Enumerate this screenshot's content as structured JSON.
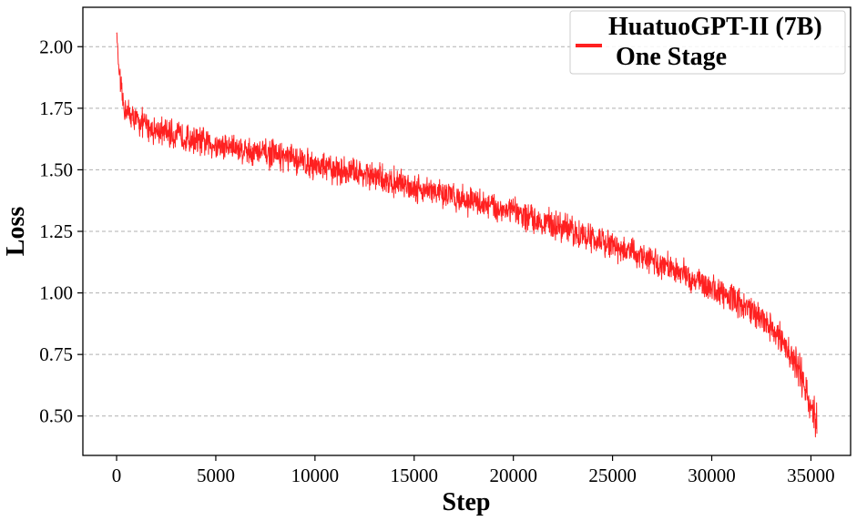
{
  "chart_data": {
    "type": "line",
    "xlabel": "Step",
    "ylabel": "Loss",
    "xlim": [
      -1700,
      37000
    ],
    "ylim": [
      0.34,
      2.16
    ],
    "x_ticks": [
      0,
      5000,
      10000,
      15000,
      20000,
      25000,
      30000,
      35000
    ],
    "y_ticks": [
      0.5,
      0.75,
      1.0,
      1.25,
      1.5,
      1.75,
      2.0
    ],
    "y_tick_labels": [
      "0.50",
      "0.75",
      "1.00",
      "1.25",
      "1.50",
      "1.75",
      "2.00"
    ],
    "grid": "horizontal-dashed",
    "legend_position": "top-right",
    "series": [
      {
        "name": "HuatuoGPT-II (7B)\nOne Stage",
        "legend_lines": [
          "HuatuoGPT-II (7B)",
          "One Stage"
        ],
        "color": "#ff2020",
        "noise_amplitude": 0.07,
        "x": [
          0,
          100,
          200,
          300,
          400,
          600,
          800,
          1000,
          1500,
          2000,
          3000,
          4000,
          5000,
          6000,
          7000,
          8000,
          9000,
          10000,
          11000,
          12000,
          13000,
          14000,
          15000,
          16000,
          17000,
          18000,
          19000,
          20000,
          21000,
          22000,
          23000,
          24000,
          25000,
          26000,
          27000,
          28000,
          29000,
          30000,
          31000,
          32000,
          32500,
          33000,
          33500,
          34000,
          34500,
          35000,
          35300
        ],
        "y": [
          2.07,
          1.92,
          1.83,
          1.78,
          1.75,
          1.73,
          1.71,
          1.7,
          1.68,
          1.66,
          1.64,
          1.62,
          1.6,
          1.59,
          1.57,
          1.56,
          1.54,
          1.52,
          1.5,
          1.49,
          1.47,
          1.45,
          1.43,
          1.41,
          1.39,
          1.37,
          1.35,
          1.33,
          1.3,
          1.28,
          1.25,
          1.22,
          1.19,
          1.16,
          1.13,
          1.1,
          1.06,
          1.02,
          0.98,
          0.93,
          0.9,
          0.86,
          0.81,
          0.74,
          0.66,
          0.56,
          0.47
        ]
      }
    ]
  }
}
